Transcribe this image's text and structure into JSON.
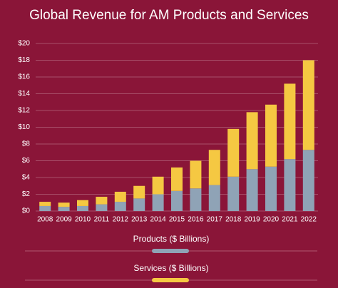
{
  "chart_data": {
    "type": "stacked_bar",
    "title": "Global Revenue for AM Products and Services",
    "categories": [
      "2008",
      "2009",
      "2010",
      "2011",
      "2012",
      "2013",
      "2014",
      "2015",
      "2016",
      "2017",
      "2018",
      "2019",
      "2020",
      "2021",
      "2022"
    ],
    "series": [
      {
        "name": "Products ($ Billions)",
        "color": "#8fa3b6",
        "values": [
          0.6,
          0.5,
          0.6,
          0.8,
          1.1,
          1.5,
          2.0,
          2.4,
          2.7,
          3.1,
          4.1,
          5.0,
          5.3,
          6.2,
          7.3
        ]
      },
      {
        "name": "Services ($ Billions)",
        "color": "#f5c842",
        "values": [
          0.5,
          0.5,
          0.7,
          0.9,
          1.2,
          1.5,
          2.1,
          2.8,
          3.3,
          4.2,
          5.7,
          6.8,
          7.4,
          9.0,
          10.7
        ]
      }
    ],
    "ylim": [
      0,
      20
    ],
    "yticks": [
      {
        "value": 0,
        "label": "$0"
      },
      {
        "value": 2,
        "label": "$2"
      },
      {
        "value": 4,
        "label": "$4"
      },
      {
        "value": 6,
        "label": "$6"
      },
      {
        "value": 8,
        "label": "$8"
      },
      {
        "value": 10,
        "label": "$10"
      },
      {
        "value": 12,
        "label": "$12"
      },
      {
        "value": 14,
        "label": "$14"
      },
      {
        "value": 16,
        "label": "$16"
      },
      {
        "value": 18,
        "label": "$18"
      },
      {
        "value": 20,
        "label": "$20"
      }
    ],
    "grid": true
  }
}
